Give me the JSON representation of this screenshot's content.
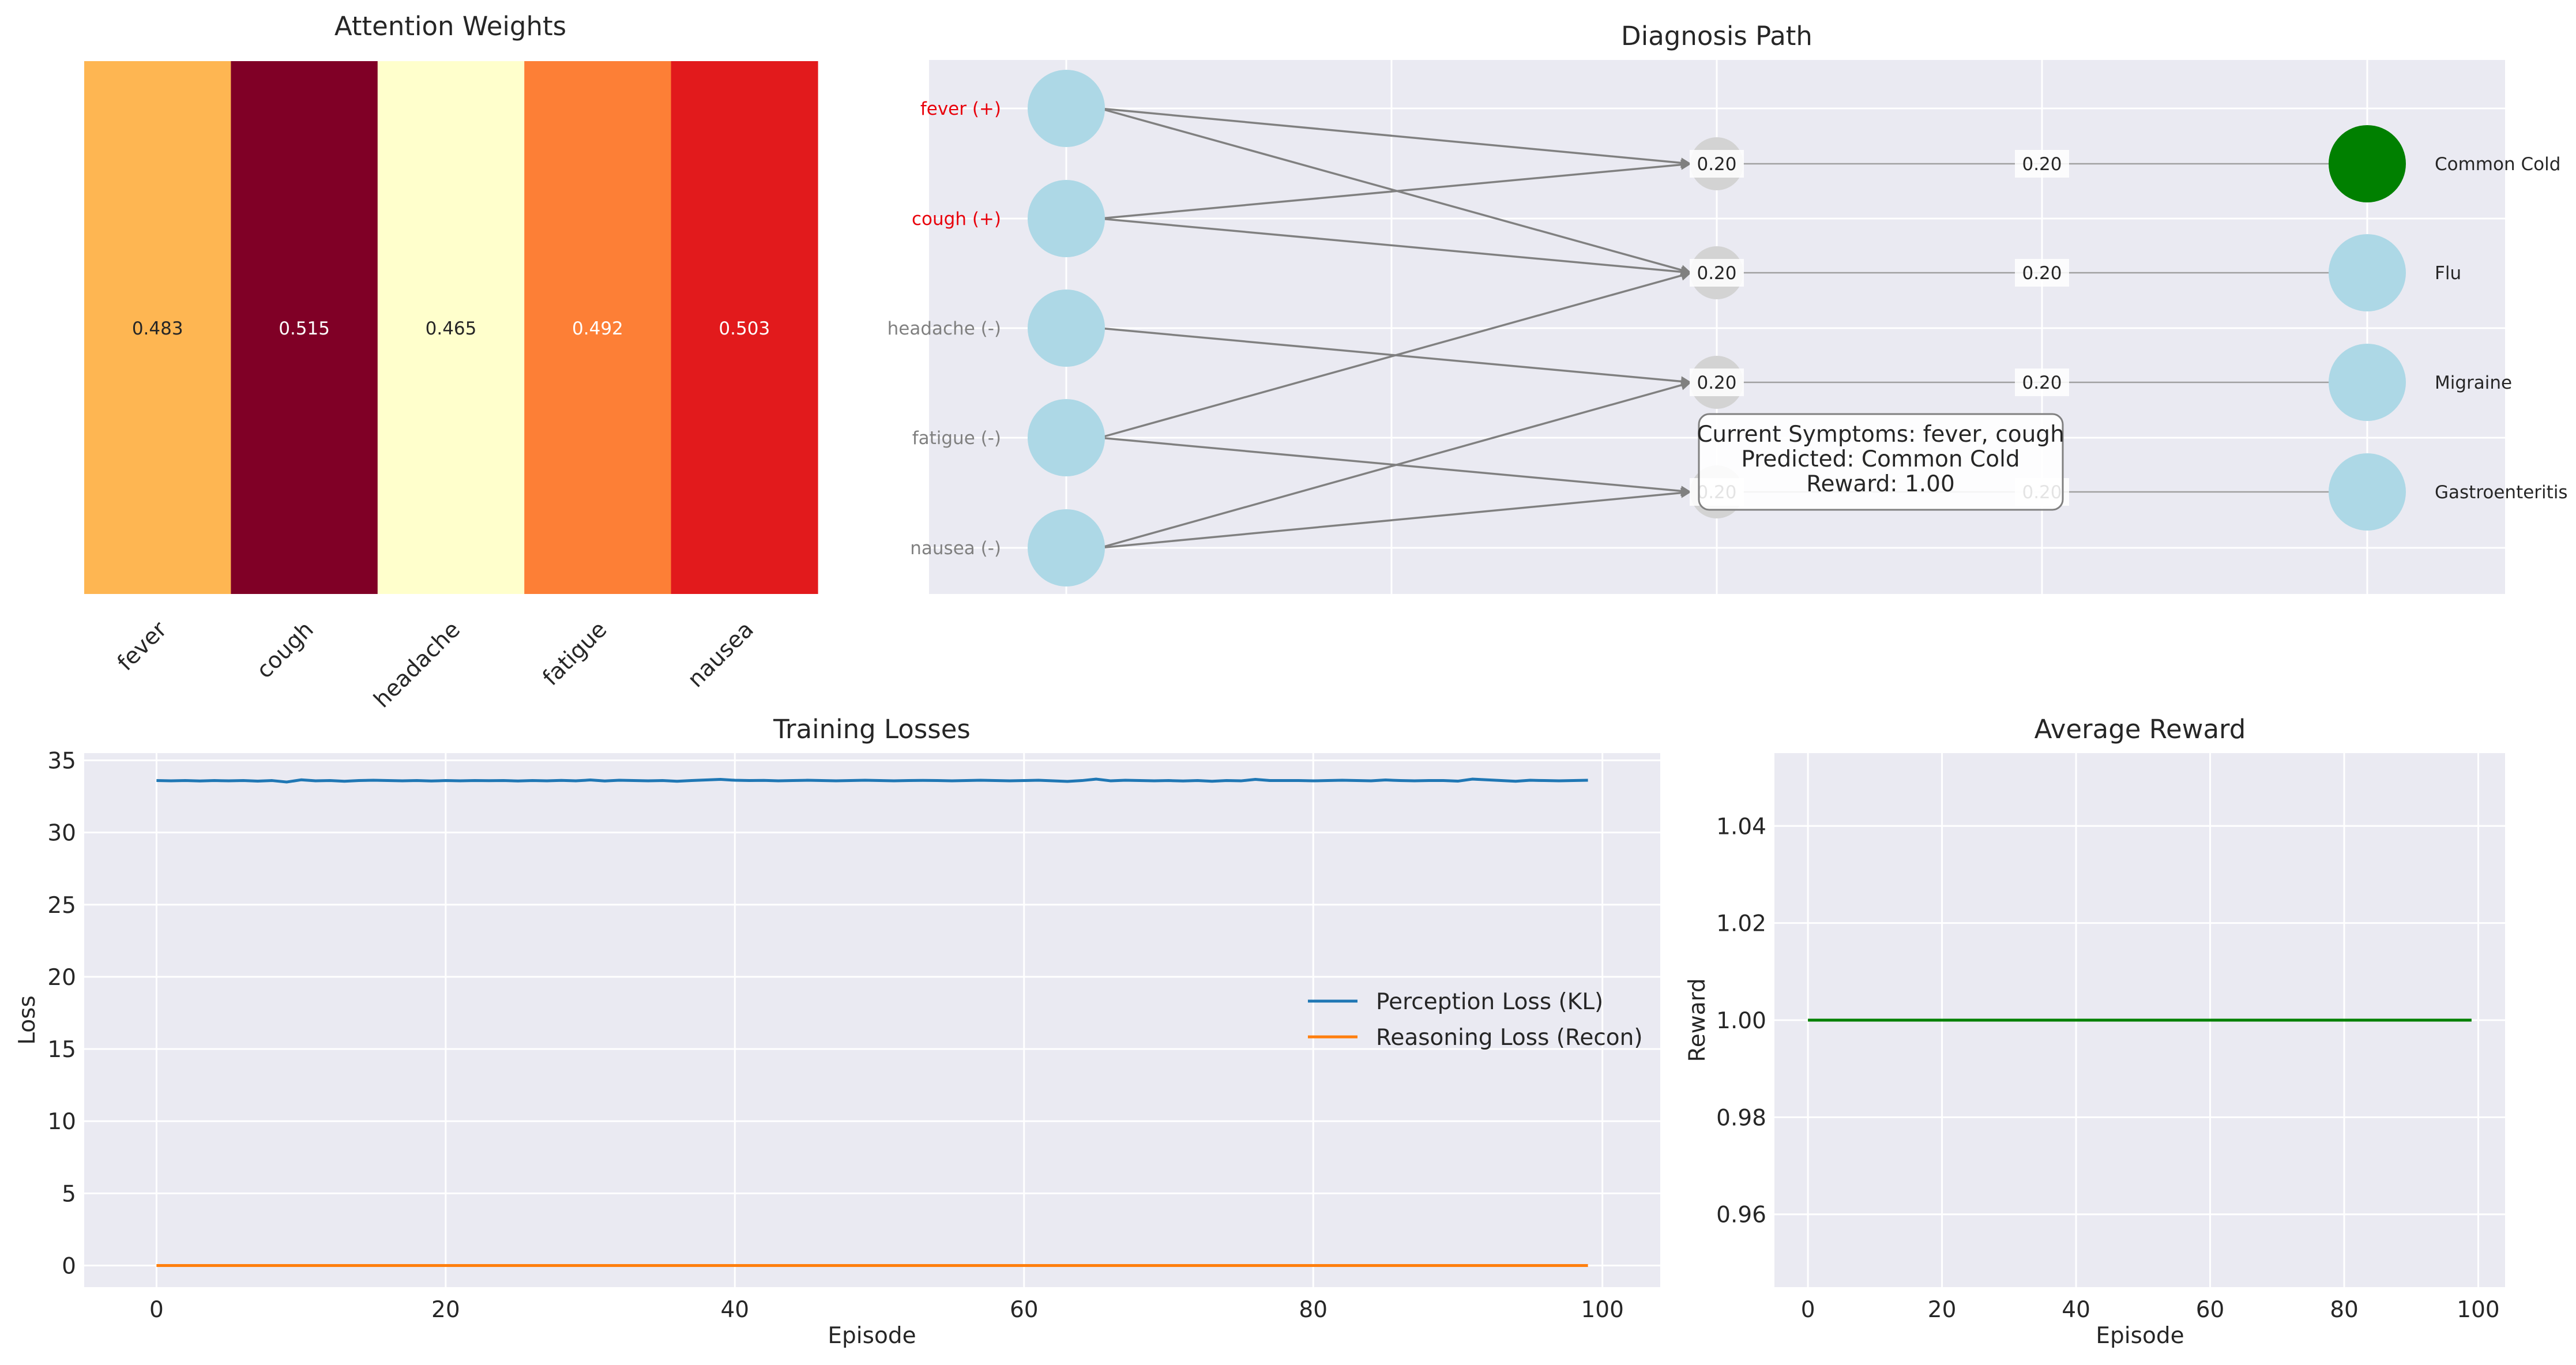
{
  "chart_data": [
    {
      "type": "heatmap",
      "title": "Attention Weights",
      "categories": [
        "fever",
        "cough",
        "headache",
        "fatigue",
        "nausea"
      ],
      "values": [
        0.483,
        0.515,
        0.465,
        0.492,
        0.503
      ],
      "value_labels": [
        "0.483",
        "0.515",
        "0.465",
        "0.492",
        "0.503"
      ],
      "colormap": "YlOrRd",
      "cell_colors": [
        "#feb652",
        "#800026",
        "#ffffcc",
        "#fd7f36",
        "#e21a1c"
      ],
      "label_colors": [
        "#262626",
        "#ffffff",
        "#262626",
        "#ffffff",
        "#ffffff"
      ]
    },
    {
      "type": "diagram",
      "title": "Diagnosis Path",
      "symptoms": [
        {
          "label": "fever (+)",
          "active": true
        },
        {
          "label": "cough (+)",
          "active": true
        },
        {
          "label": "headache (-)",
          "active": false
        },
        {
          "label": "fatigue (-)",
          "active": false
        },
        {
          "label": "nausea (-)",
          "active": false
        }
      ],
      "hidden_labels": [
        "0.20",
        "0.20",
        "0.20",
        "0.20"
      ],
      "layer2_labels": [
        "0.20",
        "0.20",
        "0.20",
        "0.20"
      ],
      "diagnoses": [
        {
          "label": "Common Cold",
          "predicted": true
        },
        {
          "label": "Flu",
          "predicted": false
        },
        {
          "label": "Migraine",
          "predicted": false
        },
        {
          "label": "Gastroenteritis",
          "predicted": false
        }
      ],
      "connections": [
        [
          0,
          0
        ],
        [
          0,
          1
        ],
        [
          1,
          0
        ],
        [
          1,
          1
        ],
        [
          2,
          2
        ],
        [
          3,
          1
        ],
        [
          3,
          3
        ],
        [
          4,
          2
        ],
        [
          4,
          3
        ]
      ],
      "info_box": [
        "Current Symptoms: fever, cough",
        "Predicted: Common Cold",
        "Reward: 1.00"
      ],
      "colors": {
        "active_text": "#e8000b",
        "inactive_text": "#808080",
        "node": "#add8e6",
        "predicted": "#008000",
        "hidden_node": "#d3d3d3",
        "edge": "#808080"
      }
    },
    {
      "type": "line",
      "title": "Training Losses",
      "xlabel": "Episode",
      "ylabel": "Loss",
      "xlim": [
        -5,
        104
      ],
      "ylim": [
        -1.5,
        35.5
      ],
      "x_ticks": [
        0,
        20,
        40,
        60,
        80,
        100
      ],
      "y_ticks": [
        0,
        5,
        10,
        15,
        20,
        25,
        30,
        35
      ],
      "legend": "center-right",
      "x": [
        0,
        1,
        2,
        3,
        4,
        5,
        6,
        7,
        8,
        9,
        10,
        11,
        12,
        13,
        14,
        15,
        16,
        17,
        18,
        19,
        20,
        21,
        22,
        23,
        24,
        25,
        26,
        27,
        28,
        29,
        30,
        31,
        32,
        33,
        34,
        35,
        36,
        37,
        38,
        39,
        40,
        41,
        42,
        43,
        44,
        45,
        46,
        47,
        48,
        49,
        50,
        51,
        52,
        53,
        54,
        55,
        56,
        57,
        58,
        59,
        60,
        61,
        62,
        63,
        64,
        65,
        66,
        67,
        68,
        69,
        70,
        71,
        72,
        73,
        74,
        75,
        76,
        77,
        78,
        79,
        80,
        81,
        82,
        83,
        84,
        85,
        86,
        87,
        88,
        89,
        90,
        91,
        92,
        93,
        94,
        95,
        96,
        97,
        98,
        99
      ],
      "series": [
        {
          "name": "Perception Loss (KL)",
          "color": "#1f77b4",
          "values": [
            33.6,
            33.58,
            33.6,
            33.57,
            33.6,
            33.58,
            33.6,
            33.56,
            33.6,
            33.5,
            33.65,
            33.58,
            33.6,
            33.55,
            33.6,
            33.62,
            33.6,
            33.58,
            33.6,
            33.57,
            33.6,
            33.58,
            33.6,
            33.59,
            33.6,
            33.57,
            33.6,
            33.58,
            33.61,
            33.58,
            33.64,
            33.57,
            33.62,
            33.6,
            33.58,
            33.6,
            33.55,
            33.6,
            33.64,
            33.68,
            33.62,
            33.6,
            33.61,
            33.58,
            33.6,
            33.62,
            33.6,
            33.58,
            33.6,
            33.62,
            33.6,
            33.58,
            33.6,
            33.61,
            33.6,
            33.58,
            33.6,
            33.62,
            33.6,
            33.58,
            33.6,
            33.62,
            33.58,
            33.54,
            33.6,
            33.7,
            33.58,
            33.62,
            33.6,
            33.58,
            33.6,
            33.57,
            33.6,
            33.55,
            33.6,
            33.58,
            33.68,
            33.6,
            33.6,
            33.6,
            33.58,
            33.6,
            33.62,
            33.6,
            33.58,
            33.64,
            33.6,
            33.58,
            33.6,
            33.6,
            33.56,
            33.7,
            33.65,
            33.6,
            33.55,
            33.62,
            33.6,
            33.58,
            33.6,
            33.62
          ]
        },
        {
          "name": "Reasoning Loss (Recon)",
          "color": "#ff7f0e",
          "values": [
            0,
            0,
            0,
            0,
            0,
            0,
            0,
            0,
            0,
            0,
            0,
            0,
            0,
            0,
            0,
            0,
            0,
            0,
            0,
            0,
            0,
            0,
            0,
            0,
            0,
            0,
            0,
            0,
            0,
            0,
            0,
            0,
            0,
            0,
            0,
            0,
            0,
            0,
            0,
            0,
            0,
            0,
            0,
            0,
            0,
            0,
            0,
            0,
            0,
            0,
            0,
            0,
            0,
            0,
            0,
            0,
            0,
            0,
            0,
            0,
            0,
            0,
            0,
            0,
            0,
            0,
            0,
            0,
            0,
            0,
            0,
            0,
            0,
            0,
            0,
            0,
            0,
            0,
            0,
            0,
            0,
            0,
            0,
            0,
            0,
            0,
            0,
            0,
            0,
            0,
            0,
            0,
            0,
            0,
            0,
            0,
            0,
            0,
            0,
            0
          ]
        }
      ]
    },
    {
      "type": "line",
      "title": "Average Reward",
      "xlabel": "Episode",
      "ylabel": "Reward",
      "xlim": [
        -5,
        104
      ],
      "ylim": [
        0.945,
        1.055
      ],
      "x_ticks": [
        0,
        20,
        40,
        60,
        80,
        100
      ],
      "y_ticks": [
        0.96,
        0.98,
        1.0,
        1.02,
        1.04
      ],
      "y_tick_labels": [
        "0.96",
        "0.98",
        "1.00",
        "1.02",
        "1.04"
      ],
      "x": [
        0,
        99
      ],
      "series": [
        {
          "color": "#008000",
          "values": [
            1.0,
            1.0
          ]
        }
      ]
    }
  ]
}
